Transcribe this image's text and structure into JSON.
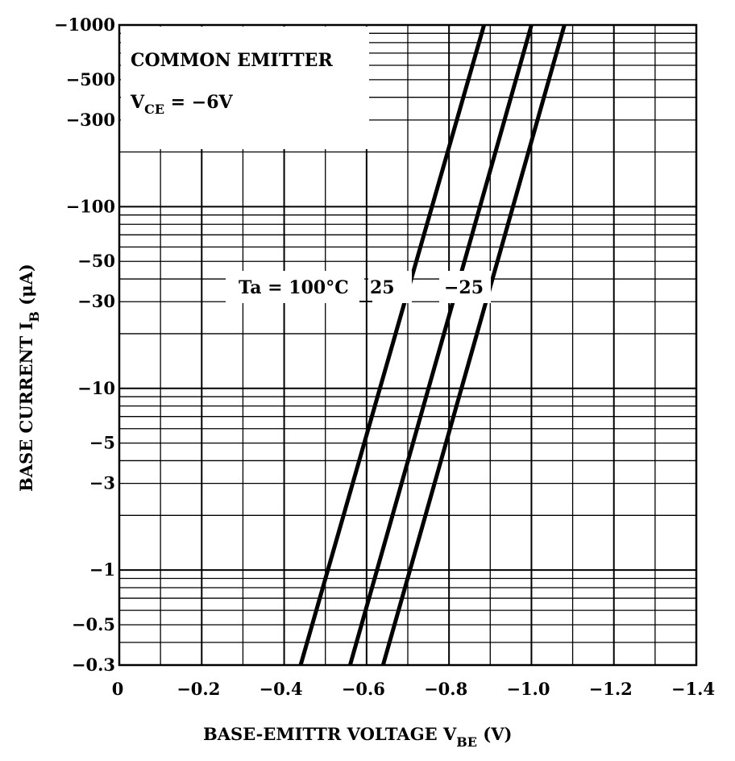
{
  "chart_data": {
    "type": "line",
    "title": "",
    "conditions": {
      "line1": "COMMON EMITTER",
      "line2_main": "V",
      "line2_sub": "CE",
      "line2_rest": " = −6V"
    },
    "xlabel": {
      "main": "BASE-EMITTR VOLTAGE   V",
      "sub": "BE",
      "unit": "   (V)"
    },
    "ylabel": {
      "main": "BASE CURRENT   I",
      "sub": "B",
      "unit": "   (μA)"
    },
    "x_axis": {
      "range": [
        0,
        -1.4
      ],
      "ticks": [
        0,
        -0.2,
        -0.4,
        -0.6,
        -0.8,
        -1.0,
        -1.2,
        -1.4
      ],
      "tick_labels": [
        "0",
        "−0.2",
        "−0.4",
        "−0.6",
        "−0.8",
        "−1.0",
        "−1.2",
        "−1.4"
      ]
    },
    "y_axis": {
      "scale": "log",
      "range": [
        -0.3,
        -1000
      ],
      "ticks": [
        -0.3,
        -0.5,
        -1,
        -3,
        -5,
        -10,
        -30,
        -50,
        -100,
        -300,
        -500,
        -1000
      ],
      "tick_labels": [
        "−0.3",
        "−0.5",
        "−1",
        "−3",
        "−5",
        "−10",
        "−30",
        "−50",
        "−100",
        "−300",
        "−500",
        "−1000"
      ]
    },
    "grid": true,
    "series_annotation": {
      "prefix": "Ta = 100°C",
      "mid": "25",
      "last": "−25"
    },
    "series": [
      {
        "name": "Ta = 100°C",
        "x": [
          -0.44,
          -0.885
        ],
        "y": [
          -0.3,
          -1000
        ]
      },
      {
        "name": "25",
        "x": [
          -0.56,
          -1.0
        ],
        "y": [
          -0.3,
          -1000
        ]
      },
      {
        "name": "−25",
        "x": [
          -0.64,
          -1.08
        ],
        "y": [
          -0.3,
          -1000
        ]
      }
    ]
  }
}
